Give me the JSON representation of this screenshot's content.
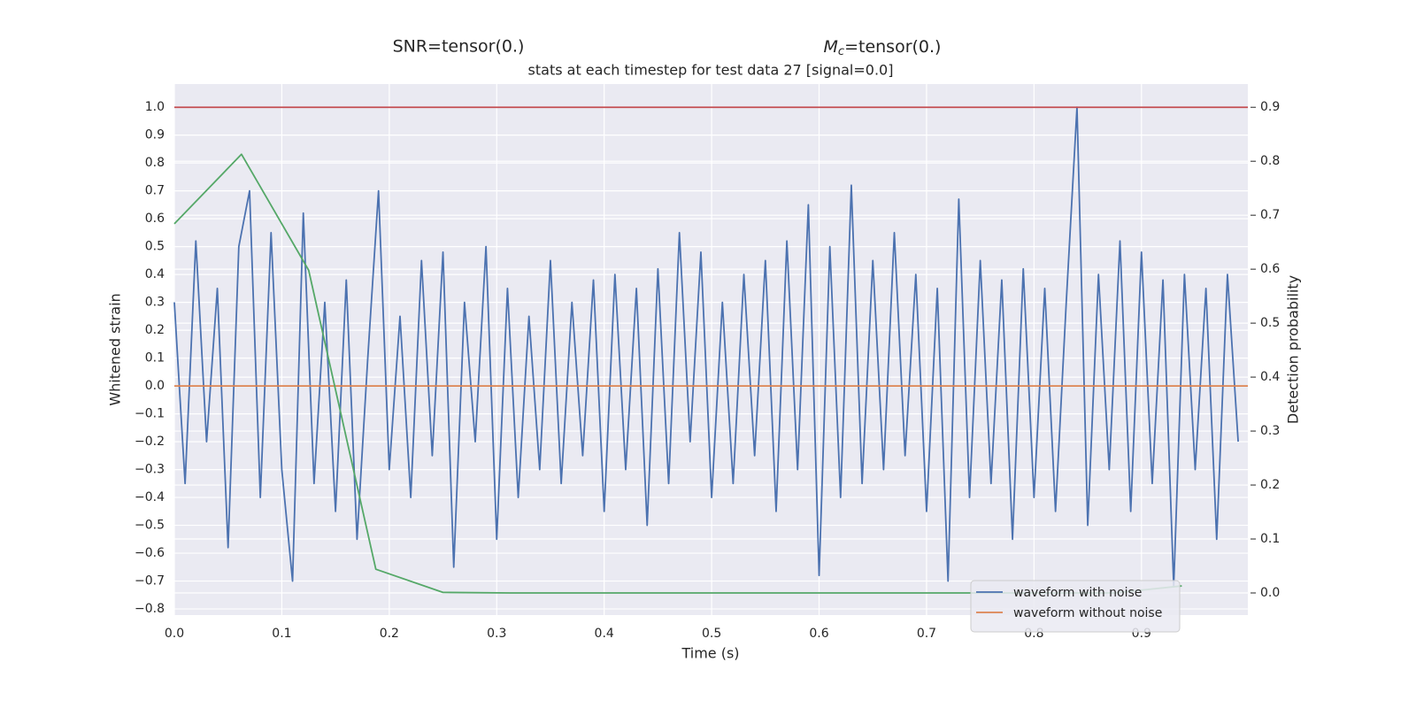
{
  "chart_data": {
    "type": "line",
    "title_left": "SNR=tensor(0.)",
    "title_right": {
      "symbol": "M",
      "subscript": "c",
      "text": "=tensor(0.)"
    },
    "subtitle": "stats at each timestep for test data 27 [signal=0.0]",
    "xlabel": "Time (s)",
    "ylabel": "Whitened strain",
    "y2label": "Detection probability",
    "xlim": [
      0,
      0.999
    ],
    "ylim": [
      -0.822,
      1.083
    ],
    "y2lim": [
      -0.041,
      0.943
    ],
    "xticks": [
      {
        "value": 0,
        "label": "0.0"
      },
      {
        "value": 0.1,
        "label": "0.1"
      },
      {
        "value": 0.2,
        "label": "0.2"
      },
      {
        "value": 0.3,
        "label": "0.3"
      },
      {
        "value": 0.4,
        "label": "0.4"
      },
      {
        "value": 0.5,
        "label": "0.5"
      },
      {
        "value": 0.6,
        "label": "0.6"
      },
      {
        "value": 0.7,
        "label": "0.7"
      },
      {
        "value": 0.8,
        "label": "0.8"
      },
      {
        "value": 0.9,
        "label": "0.9"
      }
    ],
    "yticks": [
      {
        "value": -0.8,
        "label": "−0.8"
      },
      {
        "value": -0.7,
        "label": "−0.7"
      },
      {
        "value": -0.6,
        "label": "−0.6"
      },
      {
        "value": -0.5,
        "label": "−0.5"
      },
      {
        "value": -0.4,
        "label": "−0.4"
      },
      {
        "value": -0.3,
        "label": "−0.3"
      },
      {
        "value": -0.2,
        "label": "−0.2"
      },
      {
        "value": -0.1,
        "label": "−0.1"
      },
      {
        "value": 0,
        "label": "0.0"
      },
      {
        "value": 0.1,
        "label": "0.1"
      },
      {
        "value": 0.2,
        "label": "0.2"
      },
      {
        "value": 0.3,
        "label": "0.3"
      },
      {
        "value": 0.4,
        "label": "0.4"
      },
      {
        "value": 0.5,
        "label": "0.5"
      },
      {
        "value": 0.6,
        "label": "0.6"
      },
      {
        "value": 0.7,
        "label": "0.7"
      },
      {
        "value": 0.8,
        "label": "0.8"
      },
      {
        "value": 0.9,
        "label": "0.9"
      },
      {
        "value": 1,
        "label": "1.0"
      }
    ],
    "y2ticks": [
      {
        "value": 0,
        "label": "0.0"
      },
      {
        "value": 0.1,
        "label": "0.1"
      },
      {
        "value": 0.2,
        "label": "0.2"
      },
      {
        "value": 0.3,
        "label": "0.3"
      },
      {
        "value": 0.4,
        "label": "0.4"
      },
      {
        "value": 0.5,
        "label": "0.5"
      },
      {
        "value": 0.6,
        "label": "0.6"
      },
      {
        "value": 0.7,
        "label": "0.7"
      },
      {
        "value": 0.8,
        "label": "0.8"
      },
      {
        "value": 0.9,
        "label": "0.9"
      }
    ],
    "grid": true,
    "legend": "lower right",
    "hline": {
      "value": 0.9,
      "axis": "y2",
      "color": "#c44e52"
    },
    "series": [
      {
        "name": "waveform with noise",
        "color": "#4c72b0",
        "x": [
          0,
          0.01,
          0.02,
          0.03,
          0.04,
          0.05,
          0.06,
          0.07,
          0.08,
          0.09,
          0.1,
          0.11,
          0.12,
          0.13,
          0.14,
          0.15,
          0.16,
          0.17,
          0.18,
          0.19,
          0.2,
          0.21,
          0.22,
          0.23,
          0.24,
          0.25,
          0.26,
          0.27,
          0.28,
          0.29,
          0.3,
          0.31,
          0.32,
          0.33,
          0.34,
          0.35,
          0.36,
          0.37,
          0.38,
          0.39,
          0.4,
          0.41,
          0.42,
          0.43,
          0.44,
          0.45,
          0.46,
          0.47,
          0.48,
          0.49,
          0.5,
          0.51,
          0.52,
          0.53,
          0.54,
          0.55,
          0.56,
          0.57,
          0.58,
          0.59,
          0.6,
          0.61,
          0.62,
          0.63,
          0.64,
          0.65,
          0.66,
          0.67,
          0.68,
          0.69,
          0.7,
          0.71,
          0.72,
          0.73,
          0.74,
          0.75,
          0.76,
          0.77,
          0.78,
          0.79,
          0.8,
          0.81,
          0.82,
          0.83,
          0.84,
          0.85,
          0.86,
          0.87,
          0.88,
          0.89,
          0.9,
          0.91,
          0.92,
          0.93,
          0.94,
          0.95,
          0.96,
          0.97,
          0.98,
          0.99
        ],
        "values": [
          0.3,
          -0.35,
          0.52,
          -0.2,
          0.35,
          -0.58,
          0.5,
          0.7,
          -0.4,
          0.55,
          -0.3,
          -0.7,
          0.62,
          -0.35,
          0.3,
          -0.45,
          0.38,
          -0.55,
          0.1,
          0.7,
          -0.3,
          0.25,
          -0.4,
          0.45,
          -0.25,
          0.48,
          -0.65,
          0.3,
          -0.2,
          0.5,
          -0.55,
          0.35,
          -0.4,
          0.25,
          -0.3,
          0.45,
          -0.35,
          0.3,
          -0.25,
          0.38,
          -0.45,
          0.4,
          -0.3,
          0.35,
          -0.5,
          0.42,
          -0.35,
          0.55,
          -0.2,
          0.48,
          -0.4,
          0.3,
          -0.35,
          0.4,
          -0.25,
          0.45,
          -0.45,
          0.52,
          -0.3,
          0.65,
          -0.68,
          0.5,
          -0.4,
          0.72,
          -0.35,
          0.45,
          -0.3,
          0.55,
          -0.25,
          0.4,
          -0.45,
          0.35,
          -0.7,
          0.67,
          -0.4,
          0.45,
          -0.35,
          0.38,
          -0.55,
          0.42,
          -0.4,
          0.35,
          -0.45,
          0.3,
          1.0,
          -0.5,
          0.4,
          -0.3,
          0.52,
          -0.45,
          0.48,
          -0.35,
          0.38,
          -0.72,
          0.4,
          -0.3,
          0.35,
          -0.55,
          0.4,
          -0.2
        ]
      },
      {
        "name": "waveform without noise",
        "color": "#dd8452",
        "x": [
          0,
          0.999
        ],
        "values": [
          0,
          0
        ]
      },
      {
        "color": "#55a868",
        "axis": "y2",
        "x": [
          0,
          0.0625,
          0.125,
          0.1875,
          0.25,
          0.3125,
          0.375,
          0.4375,
          0.5,
          0.5625,
          0.625,
          0.6875,
          0.75,
          0.8125,
          0.875,
          0.9375
        ],
        "values": [
          0.684,
          0.813,
          0.598,
          0.044,
          0.001,
          0,
          0,
          0,
          0,
          0,
          0,
          0,
          0,
          0,
          0,
          0.013
        ]
      }
    ]
  }
}
